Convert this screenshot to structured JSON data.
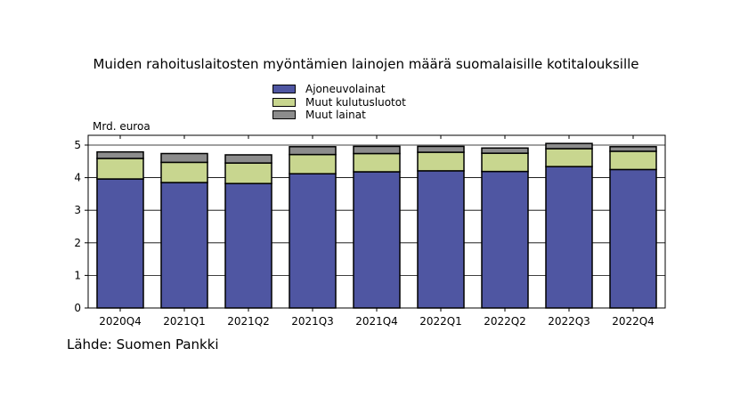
{
  "chart_data": {
    "type": "bar",
    "stacked": true,
    "title": "Muiden rahoituslaitosten myöntämien lainojen määrä suomalaisille kotitalouksille",
    "ylabel": "Mrd. euroa",
    "xlabel": "",
    "ylim": [
      0,
      5.3
    ],
    "yticks": [
      0,
      1,
      2,
      3,
      4,
      5
    ],
    "grid": "horizontal",
    "legend_position": "top-center",
    "categories": [
      "2020Q4",
      "2021Q1",
      "2021Q2",
      "2021Q3",
      "2021Q4",
      "2022Q1",
      "2022Q2",
      "2022Q3",
      "2022Q4"
    ],
    "series": [
      {
        "name": "Ajoneuvolainat",
        "color": "#4f56a2",
        "values": [
          3.96,
          3.85,
          3.82,
          4.12,
          4.18,
          4.21,
          4.19,
          4.34,
          4.25
        ]
      },
      {
        "name": "Muut kulutusluotot",
        "color": "#c8d68f",
        "values": [
          0.63,
          0.62,
          0.63,
          0.59,
          0.56,
          0.57,
          0.56,
          0.55,
          0.56
        ]
      },
      {
        "name": "Muut lainat",
        "color": "#8c8c8c",
        "values": [
          0.2,
          0.27,
          0.25,
          0.24,
          0.22,
          0.18,
          0.16,
          0.16,
          0.14
        ]
      }
    ]
  },
  "footer": {
    "source": "Lähde: Suomen Pankki"
  }
}
